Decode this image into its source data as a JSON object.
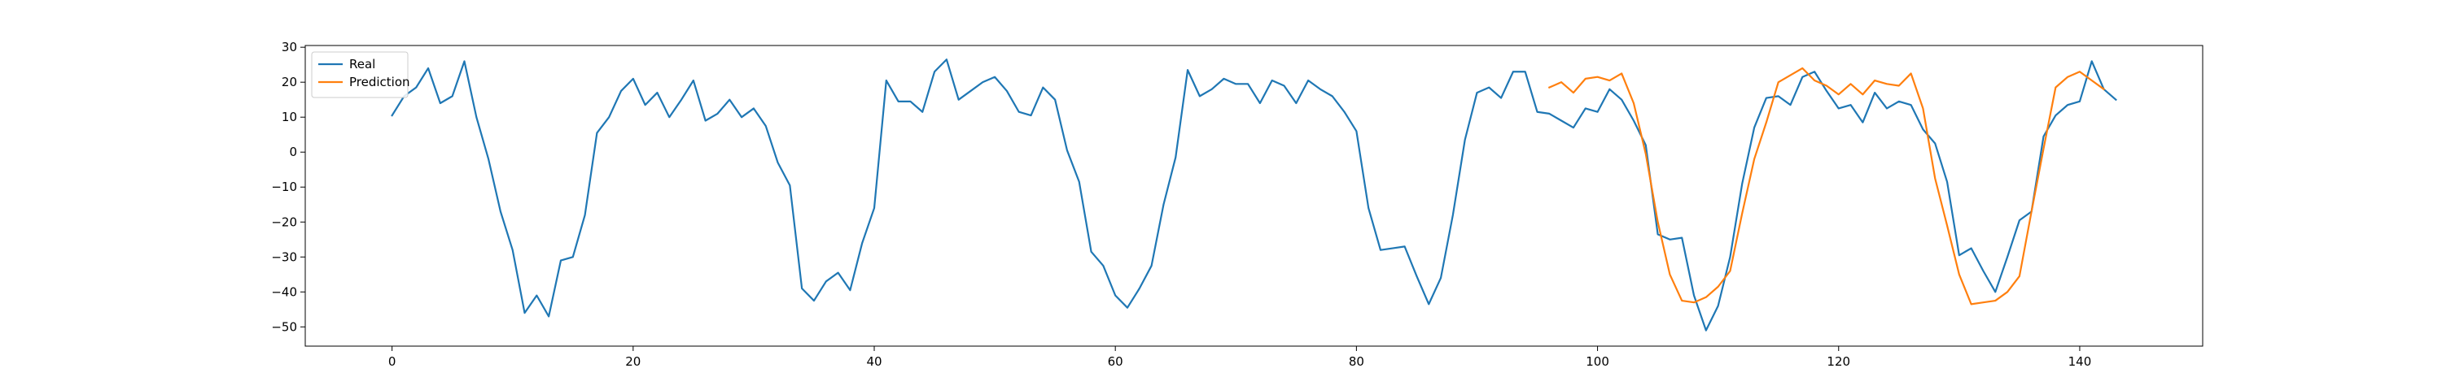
{
  "chart_data": {
    "type": "line",
    "title": "",
    "xlabel": "",
    "ylabel": "",
    "xlim": [
      -7.2,
      150.2
    ],
    "ylim": [
      -55.5,
      30.5
    ],
    "grid": false,
    "legend_position": "top-left",
    "x_ticks": [
      0,
      20,
      40,
      60,
      80,
      100,
      120,
      140
    ],
    "y_ticks": [
      30,
      20,
      10,
      0,
      -10,
      -20,
      -30,
      -40,
      -50
    ],
    "series": [
      {
        "name": "Real",
        "color": "#1f77b4",
        "x_start": 0,
        "values": [
          10.5,
          16,
          18.5,
          24,
          14,
          16,
          26,
          10,
          -2,
          -17,
          -28,
          -46,
          -41,
          -47,
          -31,
          -30,
          -18,
          5.5,
          10,
          17.5,
          21,
          13.5,
          17,
          10,
          15,
          20.5,
          9,
          11,
          15,
          10,
          12.5,
          7.5,
          -3,
          -9.5,
          -39,
          -42.5,
          -37,
          -34.5,
          -39.5,
          -26,
          -16,
          20.5,
          14.5,
          14.5,
          11.5,
          23,
          26.5,
          15,
          17.5,
          20,
          21.5,
          17.5,
          11.5,
          10.5,
          18.5,
          15,
          0.5,
          -8.5,
          -28.5,
          -32.5,
          -41,
          -44.5,
          -39,
          -32.5,
          -15,
          -1.5,
          23.5,
          16,
          18,
          21,
          19.5,
          19.5,
          14,
          20.5,
          19,
          14,
          20.5,
          18,
          16,
          11.5,
          6,
          -16,
          -28,
          -27.5,
          -27,
          -35.5,
          -43.5,
          -36,
          -18,
          3.5,
          17,
          18.5,
          15.5,
          23,
          23,
          11.5,
          11,
          9,
          7,
          12.5,
          11.5,
          18,
          15,
          9,
          2,
          -23.5,
          -25,
          -24.5,
          -41,
          -51,
          -44,
          -30,
          -9,
          7,
          15.5,
          16,
          13.5,
          21.5,
          23,
          17.5,
          12.5,
          13.5,
          8.5,
          17,
          12.5,
          14.5,
          13.5,
          6.5,
          2.5,
          -8.5,
          -29.5,
          -27.5,
          -34,
          -40,
          -30,
          -19.5,
          -17,
          4.5,
          10.5,
          13.5,
          14.5,
          26,
          18,
          15
        ]
      },
      {
        "name": "Prediction",
        "color": "#ff7f0e",
        "x_start": 96,
        "values": [
          18.5,
          20,
          17,
          21,
          21.5,
          20.5,
          22.5,
          14,
          -0.5,
          -20,
          -35,
          -42.5,
          -43,
          -41.5,
          -38.5,
          -34,
          -17.5,
          -2,
          8.5,
          20,
          22,
          24,
          20.5,
          19,
          16.5,
          19.5,
          16.5,
          20.5,
          19.5,
          19,
          22.5,
          12.5,
          -7.5,
          -21,
          -35,
          -43.5,
          -43,
          -42.5,
          -40,
          -35.5,
          -17,
          1,
          18.5,
          21.5,
          23,
          20.5,
          18
        ]
      }
    ]
  }
}
